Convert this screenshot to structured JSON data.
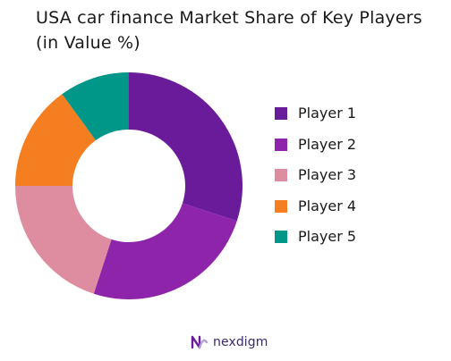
{
  "title": {
    "line1": "USA car finance Market Share of Key Players",
    "line2": "(in Value %)"
  },
  "chart_data": {
    "type": "pie",
    "donut": true,
    "legend_position": "right",
    "categories": [
      "Player 1",
      "Player 2",
      "Player 3",
      "Player 4",
      "Player 5"
    ],
    "values": [
      30,
      25,
      20,
      15,
      10
    ],
    "colors": [
      "#6a1b9a",
      "#8e24aa",
      "#de8da0",
      "#f57f20",
      "#009688"
    ]
  },
  "brand": {
    "name": "nexdigm",
    "color": "#6a1b9a"
  }
}
